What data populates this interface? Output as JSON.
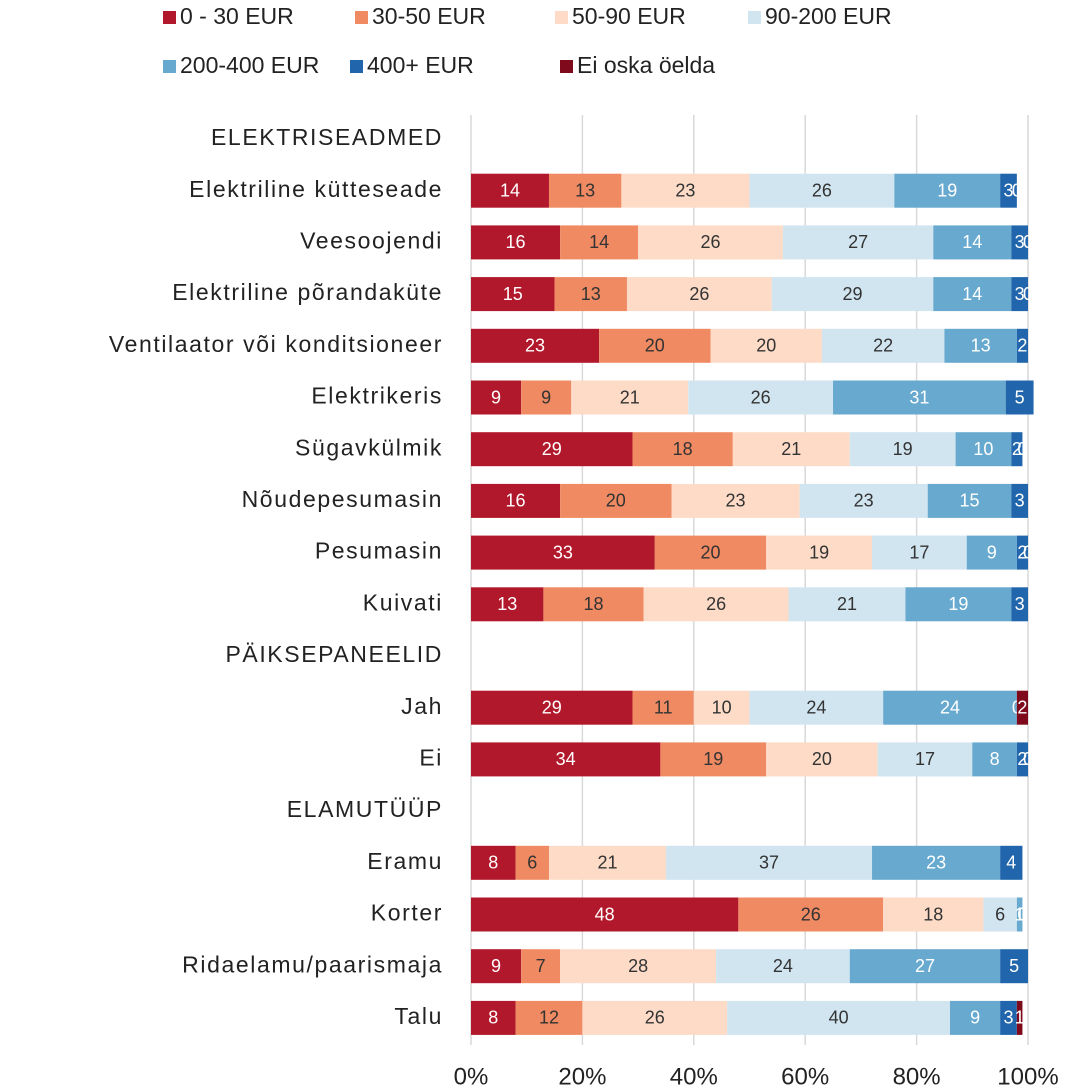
{
  "chart_data": {
    "type": "stacked-barh",
    "categories": [
      "ELEKTRISEADMED",
      "Elektriline kütteseade",
      "Veesoojendi",
      "Elektriline põrandaküte",
      "Ventilaator või konditsioneer",
      "Elektrikeris",
      "Sügavkülmik",
      "Nõudepesumasin",
      "Pesumasin",
      "Kuivati",
      "PÄIKSEPANEELID",
      "Jah",
      "Ei",
      "ELAMUTÜÜP",
      "Eramu",
      "Korter",
      "Ridaelamu/paarismaja",
      "Talu"
    ],
    "series": [
      {
        "name": "0 - 30 EUR",
        "color": "#b2182b",
        "values": [
          null,
          14,
          16,
          15,
          23,
          9,
          29,
          16,
          33,
          13,
          null,
          29,
          34,
          null,
          8,
          48,
          9,
          8
        ]
      },
      {
        "name": "30-50 EUR",
        "color": "#ef8a62",
        "values": [
          null,
          13,
          14,
          13,
          20,
          9,
          18,
          20,
          20,
          18,
          null,
          11,
          19,
          null,
          6,
          26,
          7,
          12
        ]
      },
      {
        "name": "50-90 EUR",
        "color": "#fddbc7",
        "values": [
          null,
          23,
          26,
          26,
          20,
          21,
          21,
          23,
          19,
          26,
          null,
          10,
          20,
          null,
          21,
          18,
          28,
          26
        ]
      },
      {
        "name": "90-200 EUR",
        "color": "#d1e5f0",
        "values": [
          null,
          26,
          27,
          29,
          22,
          26,
          19,
          23,
          17,
          21,
          null,
          24,
          17,
          null,
          37,
          6,
          24,
          40
        ]
      },
      {
        "name": "200-400 EUR",
        "color": "#67a9cf",
        "values": [
          null,
          19,
          14,
          14,
          13,
          31,
          10,
          15,
          9,
          19,
          null,
          24,
          8,
          null,
          23,
          1,
          27,
          9
        ]
      },
      {
        "name": "400+ EUR",
        "color": "#2166ac",
        "values": [
          null,
          3,
          3,
          3,
          2,
          5,
          2,
          3,
          2,
          3,
          null,
          0,
          2,
          null,
          4,
          0,
          5,
          3
        ]
      },
      {
        "name": "Ei oska öelda",
        "color": "#7f0a1c",
        "values": [
          null,
          0,
          0,
          0,
          null,
          null,
          0,
          null,
          0,
          null,
          null,
          2,
          0,
          null,
          null,
          null,
          null,
          1
        ]
      }
    ],
    "xlim": [
      0,
      100
    ],
    "xticks": [
      {
        "value": 0,
        "label": "0%"
      },
      {
        "value": 20,
        "label": "20%"
      },
      {
        "value": 40,
        "label": "40%"
      },
      {
        "value": 60,
        "label": "60%"
      },
      {
        "value": 80,
        "label": "80%"
      },
      {
        "value": 100,
        "label": "100%"
      }
    ],
    "grid": true
  }
}
